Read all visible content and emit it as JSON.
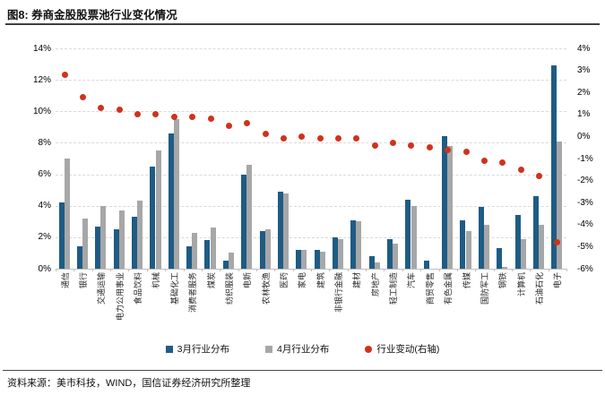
{
  "title": "图8: 券商金股股票池行业变化情况",
  "source_note": "资料来源：美市科技，WIND，国信证券经济研究所整理",
  "colors": {
    "march_bar": "#1E5C85",
    "april_bar": "#A7A7A7",
    "change_dot": "#D2311C",
    "gridline": "#D9D9D9",
    "axis_line": "#BFBFBF"
  },
  "legend": {
    "march_label": "3月行业分布",
    "april_label": "4月行业分布",
    "change_label": "行业变动(右轴)"
  },
  "chart_data": {
    "type": "bar",
    "title": "图8: 券商金股股票池行业变化情况",
    "grid": "horizontal-dashed",
    "legend_position": "bottom",
    "categories": [
      "通信",
      "银行",
      "交通运输",
      "电力公用事业",
      "食品饮料",
      "机械",
      "基础化工",
      "消费者服务",
      "煤炭",
      "纺织服装",
      "电新",
      "农林牧渔",
      "医药",
      "家电",
      "建筑",
      "非银行金融",
      "建材",
      "房地产",
      "轻工制造",
      "汽车",
      "商贸零售",
      "有色金属",
      "传媒",
      "国防军工",
      "钢铁",
      "计算机",
      "石油石化",
      "电子"
    ],
    "series": [
      {
        "name": "3月行业分布",
        "type": "bar",
        "axis": "left",
        "color": "#1E5C85",
        "values": [
          4.2,
          1.4,
          2.7,
          2.5,
          3.3,
          6.5,
          8.6,
          1.4,
          1.8,
          0.5,
          6.0,
          2.4,
          4.9,
          1.2,
          1.2,
          2.0,
          3.1,
          0.8,
          1.9,
          4.4,
          0.5,
          8.4,
          3.1,
          3.9,
          1.3,
          3.4,
          4.6,
          12.9
        ]
      },
      {
        "name": "4月行业分布",
        "type": "bar",
        "axis": "left",
        "color": "#A7A7A7",
        "values": [
          7.0,
          3.2,
          4.0,
          3.7,
          4.3,
          7.5,
          9.5,
          2.3,
          2.6,
          1.0,
          6.6,
          2.5,
          4.8,
          1.2,
          1.1,
          1.9,
          3.0,
          0.4,
          1.6,
          4.0,
          0.0,
          7.8,
          2.4,
          2.8,
          0.1,
          1.9,
          2.8,
          8.1
        ]
      },
      {
        "name": "行业变动(右轴)",
        "type": "scatter",
        "axis": "right",
        "color": "#D2311C",
        "values": [
          2.8,
          1.8,
          1.3,
          1.2,
          1.0,
          1.0,
          0.9,
          0.9,
          0.8,
          0.5,
          0.6,
          0.1,
          -0.1,
          0.0,
          -0.1,
          -0.1,
          -0.1,
          -0.4,
          -0.3,
          -0.4,
          -0.5,
          -0.6,
          -0.7,
          -1.1,
          -1.2,
          -1.5,
          -1.8,
          -4.8
        ]
      }
    ],
    "left_axis": {
      "ticks": [
        14,
        12,
        10,
        8,
        6,
        4,
        2,
        0
      ],
      "unit": "%",
      "range": [
        0,
        14
      ]
    },
    "right_axis": {
      "ticks": [
        4,
        3,
        2,
        1,
        0,
        -1,
        -2,
        -3,
        -4,
        -5,
        -6
      ],
      "unit": "%",
      "range": [
        -6,
        4
      ]
    }
  }
}
